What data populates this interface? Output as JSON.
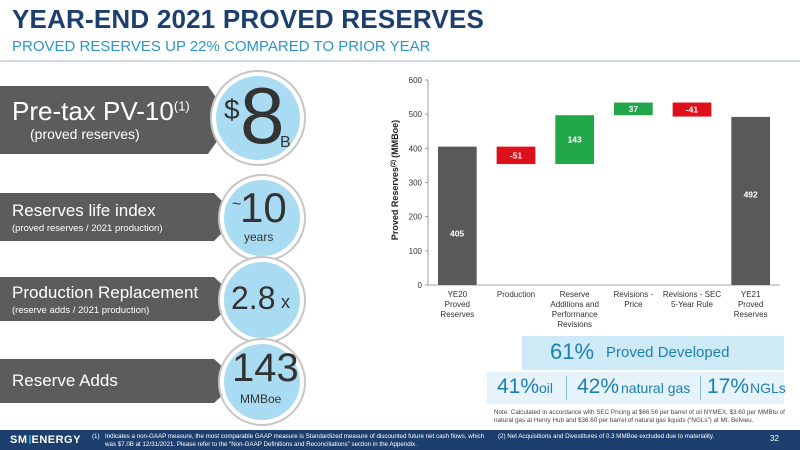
{
  "header": {
    "title": "YEAR-END 2021 PROVED RESERVES",
    "subtitle": "PROVED RESERVES UP 22% COMPARED TO PRIOR YEAR"
  },
  "metrics": {
    "pv10": {
      "label": "Pre-tax PV-10",
      "label_sup": "(1)",
      "sublabel": "(proved reserves)",
      "prefix": "$",
      "value": "8",
      "unit": "B"
    },
    "life_index": {
      "label": "Reserves life index",
      "sublabel": "(proved reserves / 2021 production)",
      "prefix": "~",
      "value": "10",
      "unit": "years"
    },
    "replacement": {
      "label": "Production Replacement",
      "sublabel": "(reserve adds / 2021 production)",
      "value": "2.8",
      "unit": "x"
    },
    "adds": {
      "label": "Reserve Adds",
      "value": "143",
      "unit": "MMBoe"
    }
  },
  "chart_data": {
    "type": "bar",
    "subtype": "waterfall",
    "title": "",
    "ylabel": "Proved Reserves",
    "ylabel_sup": "(2)",
    "ylabel_unit": "(MMBoe)",
    "ylim": [
      0,
      600
    ],
    "yticks": [
      "0",
      "100",
      "200",
      "300",
      "400",
      "500",
      "600"
    ],
    "categories": [
      "YE20 Proved Reserves",
      "Production",
      "Reserve Additions and Performance Revisions",
      "Revisions - Price",
      "Revisions - SEC 5-Year Rule",
      "YE21 Proved Reserves"
    ],
    "category_labels": [
      [
        "YE20",
        "Proved",
        "Reserves"
      ],
      [
        "Production"
      ],
      [
        "Reserve",
        "Additions and",
        "Performance",
        "Revisions"
      ],
      [
        "Revisions -",
        "Price"
      ],
      [
        "Revisions - SEC",
        "5-Year Rule"
      ],
      [
        "YE21",
        "Proved",
        "Reserves"
      ]
    ],
    "values": [
      405,
      -51,
      143,
      37,
      -41,
      492
    ],
    "value_labels": [
      "405",
      "-51",
      "143",
      "37",
      "-41",
      "492"
    ],
    "kinds": [
      "total",
      "decrease",
      "increase",
      "increase",
      "decrease",
      "total"
    ],
    "colors": {
      "total": "#595959",
      "increase": "#22a84a",
      "decrease": "#e0101a"
    },
    "grid": false
  },
  "stats": {
    "pd_pct": "61%",
    "pd_label": "Proved Developed",
    "oil_pct": "41%",
    "oil_label": "oil",
    "gas_pct": "42%",
    "gas_label": "natural gas",
    "ngl_pct": "17%",
    "ngl_label": "NGLs"
  },
  "note": "Note: Calculated in accordance with SEC Pricing at $66.56 per barrel of oil NYMEX, $3.60 per MMBtu of natural gas at Henry Hub and $36.60 per barrel of natural gas liquids (“NGLs”) at Mt. Belvieu.",
  "footer": {
    "logo_sm": "SM",
    "logo_energy": "ENERGY",
    "fn1_mark": "(1)",
    "fn1": "Indicates a non-GAAP measure, the most comparable GAAP measure is Standardized measure of discounted future net cash flows, which was $7.0B at 12/31/2021. Please refer to the “Non-GAAP Definitions and Reconciliations” section in the Appendix.",
    "fn2": "(2)  Net Acquisitions and Divestitures of 0.3 MMBoe excluded due to materiality.",
    "page": "32"
  }
}
